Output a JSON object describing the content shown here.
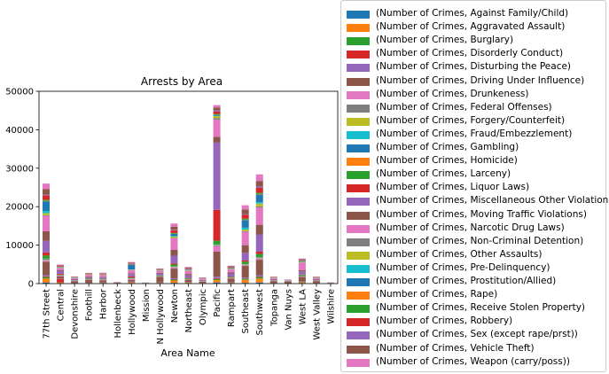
{
  "chart_data": {
    "type": "bar",
    "stacked": true,
    "title": "Arrests by Area",
    "xlabel": "Area Name",
    "ylabel": "",
    "ylim": [
      0,
      50000
    ],
    "yticks": [
      0,
      10000,
      20000,
      30000,
      40000,
      50000
    ],
    "ytick_labels": [
      "0",
      "10000",
      "20000",
      "30000",
      "40000",
      "50000"
    ],
    "grid": false,
    "legend_position": "outside-right",
    "categories": [
      "77th Street",
      "Central",
      "Devonshire",
      "Foothill",
      "Harbor",
      "Hollenbeck",
      "Hollywood",
      "Mission",
      "N Hollywood",
      "Newton",
      "Northeast",
      "Olympic",
      "Pacific",
      "Rampart",
      "Southeast",
      "Southwest",
      "Topanga",
      "Van Nuys",
      "West LA",
      "West Valley",
      "Wilshire"
    ],
    "series": [
      {
        "name": "(Number of Crimes, Against Family/Child)",
        "color": "#1f77b4",
        "values": [
          300,
          50,
          20,
          30,
          40,
          5,
          60,
          5,
          40,
          200,
          60,
          20,
          300,
          40,
          200,
          300,
          20,
          10,
          60,
          20,
          5
        ]
      },
      {
        "name": "(Number of Crimes, Aggravated Assault)",
        "color": "#ff7f0e",
        "values": [
          1000,
          150,
          50,
          80,
          100,
          10,
          150,
          10,
          100,
          600,
          150,
          50,
          600,
          100,
          800,
          1000,
          50,
          20,
          200,
          50,
          10
        ]
      },
      {
        "name": "(Number of Crimes, Burglary)",
        "color": "#2ca02c",
        "values": [
          400,
          80,
          30,
          40,
          50,
          5,
          80,
          5,
          50,
          250,
          100,
          30,
          300,
          60,
          300,
          400,
          30,
          10,
          100,
          30,
          5
        ]
      },
      {
        "name": "(Number of Crimes, Disorderly Conduct)",
        "color": "#d62728",
        "values": [
          200,
          900,
          10,
          20,
          20,
          5,
          100,
          5,
          20,
          100,
          30,
          20,
          200,
          50,
          100,
          150,
          10,
          5,
          50,
          10,
          5
        ]
      },
      {
        "name": "(Number of Crimes, Disturbing the Peace)",
        "color": "#9467bd",
        "values": [
          300,
          100,
          30,
          50,
          60,
          10,
          100,
          10,
          60,
          250,
          80,
          40,
          400,
          80,
          200,
          350,
          40,
          20,
          100,
          40,
          10
        ]
      },
      {
        "name": "(Number of Crimes, Driving Under Influence)",
        "color": "#8c564b",
        "values": [
          3500,
          600,
          500,
          800,
          600,
          150,
          500,
          50,
          1500,
          2500,
          600,
          300,
          6500,
          1000,
          3000,
          4000,
          500,
          400,
          1200,
          500,
          80
        ]
      },
      {
        "name": "(Number of Crimes, Drunkeness)",
        "color": "#e377c2",
        "values": [
          300,
          200,
          60,
          100,
          150,
          10,
          300,
          10,
          100,
          300,
          100,
          50,
          1500,
          150,
          200,
          300,
          50,
          30,
          150,
          50,
          10
        ]
      },
      {
        "name": "(Number of Crimes, Federal Offenses)",
        "color": "#7f7f7f",
        "values": [
          50,
          20,
          5,
          5,
          10,
          2,
          20,
          2,
          5,
          30,
          10,
          5,
          100,
          10,
          30,
          50,
          5,
          2,
          10,
          5,
          2
        ]
      },
      {
        "name": "(Number of Crimes, Forgery/Counterfeit)",
        "color": "#bcbd22",
        "values": [
          100,
          30,
          10,
          20,
          20,
          2,
          30,
          2,
          20,
          80,
          30,
          10,
          100,
          20,
          60,
          100,
          10,
          5,
          30,
          10,
          2
        ]
      },
      {
        "name": "(Number of Crimes, Fraud/Embezzlement)",
        "color": "#17becf",
        "values": [
          50,
          30,
          10,
          10,
          10,
          2,
          30,
          2,
          10,
          50,
          20,
          10,
          100,
          20,
          40,
          60,
          10,
          5,
          20,
          10,
          2
        ]
      },
      {
        "name": "(Number of Crimes, Gambling)",
        "color": "#1f77b4",
        "values": [
          200,
          20,
          5,
          10,
          10,
          2,
          10,
          2,
          10,
          50,
          20,
          5,
          30,
          10,
          80,
          100,
          5,
          2,
          20,
          5,
          2
        ]
      },
      {
        "name": "(Number of Crimes, Homicide)",
        "color": "#ff7f0e",
        "values": [
          100,
          10,
          5,
          10,
          10,
          2,
          10,
          2,
          10,
          50,
          10,
          5,
          30,
          10,
          80,
          80,
          5,
          2,
          10,
          5,
          2
        ]
      },
      {
        "name": "(Number of Crimes, Larceny)",
        "color": "#2ca02c",
        "values": [
          800,
          150,
          100,
          150,
          150,
          30,
          200,
          20,
          150,
          500,
          200,
          80,
          1000,
          200,
          600,
          800,
          100,
          60,
          300,
          100,
          20
        ]
      },
      {
        "name": "(Number of Crimes, Liquor Laws)",
        "color": "#d62728",
        "values": [
          800,
          200,
          20,
          60,
          60,
          10,
          300,
          5,
          50,
          300,
          100,
          30,
          8000,
          100,
          300,
          600,
          30,
          10,
          100,
          30,
          5
        ]
      },
      {
        "name": "(Number of Crimes, Miscellaneous Other Violations)",
        "color": "#9467bd",
        "values": [
          3000,
          800,
          200,
          300,
          400,
          50,
          600,
          30,
          500,
          2000,
          700,
          200,
          17500,
          800,
          2000,
          4500,
          200,
          100,
          800,
          200,
          30
        ]
      },
      {
        "name": "(Number of Crimes, Moving Traffic Violations)",
        "color": "#8c564b",
        "values": [
          2500,
          200,
          100,
          150,
          100,
          20,
          200,
          10,
          200,
          1500,
          300,
          100,
          1500,
          300,
          2000,
          2500,
          100,
          50,
          300,
          100,
          20
        ]
      },
      {
        "name": "(Number of Crimes, Narcotic Drug Laws)",
        "color": "#e377c2",
        "values": [
          4000,
          500,
          300,
          400,
          400,
          50,
          800,
          30,
          500,
          3000,
          800,
          300,
          4500,
          800,
          3500,
          4500,
          300,
          150,
          2000,
          300,
          50
        ]
      },
      {
        "name": "(Number of Crimes, Non-Criminal Detention)",
        "color": "#7f7f7f",
        "values": [
          200,
          50,
          20,
          30,
          30,
          5,
          50,
          5,
          30,
          150,
          50,
          20,
          400,
          50,
          150,
          300,
          20,
          10,
          50,
          20,
          5
        ]
      },
      {
        "name": "(Number of Crimes, Other Assaults)",
        "color": "#bcbd22",
        "values": [
          500,
          100,
          50,
          80,
          80,
          10,
          100,
          10,
          80,
          300,
          100,
          50,
          500,
          100,
          400,
          700,
          50,
          20,
          150,
          50,
          10
        ]
      },
      {
        "name": "(Number of Crimes, Pre-Delinquency)",
        "color": "#17becf",
        "values": [
          600,
          20,
          50,
          30,
          50,
          5,
          50,
          5,
          30,
          200,
          80,
          20,
          100,
          30,
          500,
          400,
          20,
          10,
          100,
          20,
          5
        ]
      },
      {
        "name": "(Number of Crimes, Prostitution/Allied)",
        "color": "#1f77b4",
        "values": [
          2500,
          100,
          20,
          30,
          30,
          5,
          1200,
          5,
          50,
          500,
          100,
          30,
          200,
          100,
          2000,
          2000,
          20,
          10,
          100,
          20,
          5
        ]
      },
      {
        "name": "(Number of Crimes, Rape)",
        "color": "#ff7f0e",
        "values": [
          100,
          20,
          10,
          10,
          10,
          2,
          20,
          2,
          10,
          50,
          20,
          10,
          50,
          20,
          80,
          100,
          10,
          5,
          20,
          10,
          2
        ]
      },
      {
        "name": "(Number of Crimes, Receive Stolen Property)",
        "color": "#2ca02c",
        "values": [
          300,
          50,
          30,
          40,
          50,
          5,
          80,
          5,
          40,
          200,
          60,
          20,
          200,
          50,
          250,
          300,
          30,
          10,
          60,
          30,
          5
        ]
      },
      {
        "name": "(Number of Crimes, Robbery)",
        "color": "#d62728",
        "values": [
          1100,
          150,
          50,
          80,
          80,
          10,
          150,
          10,
          80,
          700,
          150,
          50,
          600,
          150,
          1000,
          1300,
          50,
          20,
          150,
          50,
          10
        ]
      },
      {
        "name": "(Number of Crimes, Sex (except rape/prst))",
        "color": "#9467bd",
        "values": [
          200,
          50,
          30,
          40,
          40,
          5,
          80,
          5,
          40,
          150,
          60,
          30,
          300,
          60,
          200,
          300,
          30,
          20,
          80,
          30,
          5
        ]
      },
      {
        "name": "(Number of Crimes, Vehicle Theft)",
        "color": "#8c564b",
        "values": [
          1500,
          150,
          100,
          150,
          150,
          20,
          200,
          20,
          150,
          800,
          200,
          80,
          800,
          200,
          1200,
          1500,
          100,
          50,
          200,
          100,
          20
        ]
      },
      {
        "name": "(Number of Crimes, Weapon (carry/poss))",
        "color": "#e377c2",
        "values": [
          1400,
          200,
          60,
          80,
          120,
          10,
          200,
          10,
          100,
          800,
          200,
          60,
          600,
          150,
          1100,
          1700,
          60,
          30,
          150,
          60,
          10
        ]
      }
    ]
  }
}
